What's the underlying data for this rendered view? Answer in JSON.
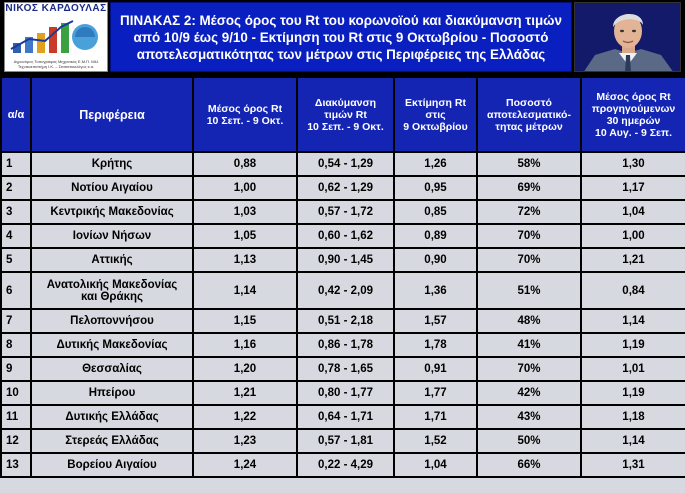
{
  "header": {
    "logo": {
      "name": "ΝΙΚΟΣ ΚΑΡΔΟΥΛΑΣ",
      "subtitle": "Αγρονόμος Τοπογράφος Μηχανικός Ε.Μ.Π. Μέλ Τεχνικοεπιστήμη Ι.Κ. – Στατιστικολόγος κ.α."
    },
    "title_lines": [
      "ΠΙΝΑΚΑΣ 2: Μέσος όρος του Rt του κορωνοϊού και διακύμανση τιμών",
      "από 10/9 έως 9/10 - Εκτίμηση του Rt στις 9 Οκτωβρίου - Ποσοστό",
      "αποτελεσματικότητας των μέτρων στις Περιφέρειες της Ελλάδας"
    ]
  },
  "table": {
    "columns": [
      "α/α",
      "Περιφέρεια",
      "Μέσος όρος Rt\n10 Σεπ. - 9 Οκτ.",
      "Διακύμανση\nτιμών Rt\n10 Σεπ. - 9 Οκτ.",
      "Εκτίμηση Rt\nστις\n9 Οκτωβρίου",
      "Ποσοστό\nαποτελεσματικό-\nτητας μέτρων",
      "Μέσος όρος Rt\nπρογηγούμενων\n30 ημερών\n10 Αυγ. - 9 Σεπ."
    ],
    "rows": [
      [
        "1",
        "Κρήτης",
        "0,88",
        "0,54 - 1,29",
        "1,26",
        "58%",
        "1,30"
      ],
      [
        "2",
        "Νοτίου Αιγαίου",
        "1,00",
        "0,62 - 1,29",
        "0,95",
        "69%",
        "1,17"
      ],
      [
        "3",
        "Κεντρικής Μακεδονίας",
        "1,03",
        "0,57 - 1,72",
        "0,85",
        "72%",
        "1,04"
      ],
      [
        "4",
        "Ιονίων Νήσων",
        "1,05",
        "0,60 - 1,62",
        "0,89",
        "70%",
        "1,00"
      ],
      [
        "5",
        "Αττικής",
        "1,13",
        "0,90 - 1,45",
        "0,90",
        "70%",
        "1,21"
      ],
      [
        "6",
        "Ανατολικής Μακεδονίας\nκαι Θράκης",
        "1,14",
        "0,42 - 2,09",
        "1,36",
        "51%",
        "0,84"
      ],
      [
        "7",
        "Πελοποννήσου",
        "1,15",
        "0,51 - 2,18",
        "1,57",
        "48%",
        "1,14"
      ],
      [
        "8",
        "Δυτικής Μακεδονίας",
        "1,16",
        "0,86 - 1,78",
        "1,78",
        "41%",
        "1,19"
      ],
      [
        "9",
        "Θεσσαλίας",
        "1,20",
        "0,78 - 1,65",
        "0,91",
        "70%",
        "1,01"
      ],
      [
        "10",
        "Ηπείρου",
        "1,21",
        "0,80 - 1,77",
        "1,77",
        "42%",
        "1,19"
      ],
      [
        "11",
        "Δυτικής Ελλάδας",
        "1,22",
        "0,64 - 1,71",
        "1,71",
        "43%",
        "1,18"
      ],
      [
        "12",
        "Στερεάς Ελλάδας",
        "1,23",
        "0,57 - 1,81",
        "1,52",
        "50%",
        "1,14"
      ],
      [
        "13",
        "Βορείου Αιγαίου",
        "1,24",
        "0,22 - 4,29",
        "1,04",
        "66%",
        "1,31"
      ]
    ]
  },
  "colors": {
    "header_blue": "#1525b3",
    "title_blue": "#0a1fbf",
    "row_bg": "#d6d9df"
  }
}
